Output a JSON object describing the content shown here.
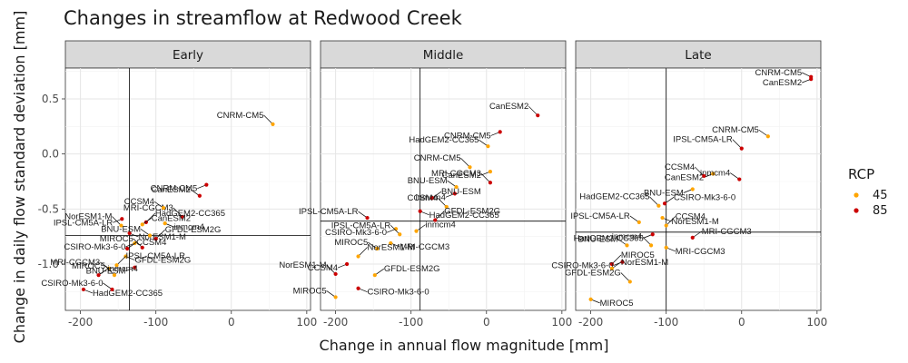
{
  "colors": {
    "rcp45": "#ffa500",
    "rcp85": "#cc0000"
  },
  "chart_data": {
    "type": "scatter",
    "title": "Changes in streamflow at Redwood Creek",
    "xlabel": "Change in annual flow magnitude [mm]",
    "ylabel": "Change in daily flow standard deviation [mm]",
    "xlim": [
      -220,
      105
    ],
    "ylim": [
      -1.42,
      0.78
    ],
    "xticks": [
      -200,
      -100,
      0,
      100
    ],
    "xtick_labels": [
      "-200",
      "-100",
      "0",
      "100"
    ],
    "yticks": [
      -1.0,
      -0.5,
      0.0,
      0.5
    ],
    "ytick_labels": [
      "-1.0",
      "-0.5",
      "0.0",
      "0.5"
    ],
    "grid": true,
    "legend": {
      "title": "RCP",
      "placement": "right",
      "entries": [
        "45",
        "85"
      ]
    },
    "facets": [
      {
        "name": "Early",
        "vline": -135,
        "hline": -0.74,
        "points": [
          {
            "label": "CNRM-CM5",
            "x": 55,
            "y": 0.27,
            "rcp": "45"
          },
          {
            "label": "CNRM-CM5",
            "x": -33,
            "y": -0.28,
            "rcp": "85"
          },
          {
            "label": "CanESM2",
            "x": -42,
            "y": -0.38,
            "rcp": "85"
          },
          {
            "label": "MRI-CGCM3",
            "x": -65,
            "y": -0.57,
            "rcp": "85"
          },
          {
            "label": "inmcm4",
            "x": -88,
            "y": -0.63,
            "rcp": "45"
          },
          {
            "label": "CCSM4",
            "x": -90,
            "y": -0.49,
            "rcp": "45"
          },
          {
            "label": "HadGEM2-CC365",
            "x": -113,
            "y": -0.62,
            "rcp": "85"
          },
          {
            "label": "IPSL-CM5A-LR",
            "x": -145,
            "y": -0.59,
            "rcp": "85"
          },
          {
            "label": "CanESM2",
            "x": -118,
            "y": -0.64,
            "rcp": "45"
          },
          {
            "label": "NorESM1-M",
            "x": -146,
            "y": -0.65,
            "rcp": "45"
          },
          {
            "label": "NorESM1-M",
            "x": -135,
            "y": -0.72,
            "rcp": "85"
          },
          {
            "label": "BNU-ESM",
            "x": -108,
            "y": -0.74,
            "rcp": "45"
          },
          {
            "label": "GFDL-ESM2G",
            "x": -100,
            "y": -0.77,
            "rcp": "85"
          },
          {
            "label": "CSIRO-Mk3-6-0",
            "x": -128,
            "y": -0.81,
            "rcp": "45"
          },
          {
            "label": "CCSM4",
            "x": -138,
            "y": -0.86,
            "rcp": "85"
          },
          {
            "label": "MIROC5",
            "x": -118,
            "y": -0.85,
            "rcp": "85"
          },
          {
            "label": "GFDL-ESM2G",
            "x": -140,
            "y": -0.93,
            "rcp": "45"
          },
          {
            "label": "MRI-CGCM3",
            "x": -162,
            "y": -1.04,
            "rcp": "45"
          },
          {
            "label": "IPSL-CM5A-LR",
            "x": -152,
            "y": -1.01,
            "rcp": "45"
          },
          {
            "label": "BNU-ESM",
            "x": -128,
            "y": -1.03,
            "rcp": "85"
          },
          {
            "label": "inmcm4",
            "x": -176,
            "y": -1.1,
            "rcp": "85"
          },
          {
            "label": "MIROC5",
            "x": -155,
            "y": -1.1,
            "rcp": "45"
          },
          {
            "label": "HadGEM2-CC365",
            "x": -196,
            "y": -1.23,
            "rcp": "85"
          },
          {
            "label": "CSIRO-Mk3-6-0",
            "x": -158,
            "y": -1.23,
            "rcp": "85"
          }
        ]
      },
      {
        "name": "Middle",
        "vline": -88,
        "hline": -0.61,
        "points": [
          {
            "label": "CanESM2",
            "x": 68,
            "y": 0.35,
            "rcp": "85"
          },
          {
            "label": "CNRM-CM5",
            "x": 18,
            "y": 0.2,
            "rcp": "85"
          },
          {
            "label": "HadGEM2-CC365",
            "x": 2,
            "y": 0.07,
            "rcp": "45"
          },
          {
            "label": "CNRM-CM5",
            "x": -22,
            "y": -0.12,
            "rcp": "45"
          },
          {
            "label": "CanESM2",
            "x": 5,
            "y": -0.16,
            "rcp": "45"
          },
          {
            "label": "BNU-ESM",
            "x": -40,
            "y": -0.3,
            "rcp": "45"
          },
          {
            "label": "MRI-CGCM3",
            "x": 5,
            "y": -0.26,
            "rcp": "85"
          },
          {
            "label": "inmcm4",
            "x": -42,
            "y": -0.36,
            "rcp": "85"
          },
          {
            "label": "BNU-ESM",
            "x": -72,
            "y": -0.4,
            "rcp": "85"
          },
          {
            "label": "CCSM4",
            "x": -53,
            "y": -0.48,
            "rcp": "45"
          },
          {
            "label": "HadGEM2-CC365",
            "x": -88,
            "y": -0.52,
            "rcp": "85"
          },
          {
            "label": "IPSL-CM5A-LR",
            "x": -158,
            "y": -0.58,
            "rcp": "85"
          },
          {
            "label": "GFDL-ESM2G",
            "x": -68,
            "y": -0.6,
            "rcp": "85"
          },
          {
            "label": "CSIRO-Mk3-6-0",
            "x": -120,
            "y": -0.68,
            "rcp": "45"
          },
          {
            "label": "inmcm4",
            "x": -93,
            "y": -0.7,
            "rcp": "45"
          },
          {
            "label": "IPSL-CM5A-LR",
            "x": -115,
            "y": -0.73,
            "rcp": "45"
          },
          {
            "label": "MRI-CGCM3",
            "x": -127,
            "y": -0.81,
            "rcp": "45"
          },
          {
            "label": "MIROC5",
            "x": -145,
            "y": -0.86,
            "rcp": "45"
          },
          {
            "label": "NorESM1-M",
            "x": -170,
            "y": -0.93,
            "rcp": "45"
          },
          {
            "label": "CCSM4",
            "x": -185,
            "y": -1.0,
            "rcp": "85"
          },
          {
            "label": "GFDL-ESM2G",
            "x": -148,
            "y": -1.1,
            "rcp": "45"
          },
          {
            "label": "NorESM1-M",
            "x": -200,
            "y": -1.09,
            "rcp": "85"
          },
          {
            "label": "CSIRO-Mk3-6-0",
            "x": -170,
            "y": -1.22,
            "rcp": "85"
          },
          {
            "label": "MIROC5",
            "x": -200,
            "y": -1.3,
            "rcp": "45"
          }
        ]
      },
      {
        "name": "Late",
        "vline": -100,
        "hline": -0.71,
        "points": [
          {
            "label": "CNRM-CM5",
            "x": 92,
            "y": 0.7,
            "rcp": "85"
          },
          {
            "label": "CanESM2",
            "x": 92,
            "y": 0.68,
            "rcp": "85"
          },
          {
            "label": "CNRM-CM5",
            "x": 35,
            "y": 0.16,
            "rcp": "45"
          },
          {
            "label": "IPSL-CM5A-LR",
            "x": 0,
            "y": 0.05,
            "rcp": "85"
          },
          {
            "label": "CanESM2",
            "x": -38,
            "y": -0.18,
            "rcp": "45"
          },
          {
            "label": "inmcm4",
            "x": -3,
            "y": -0.23,
            "rcp": "85"
          },
          {
            "label": "CCSM4",
            "x": -50,
            "y": -0.2,
            "rcp": "85"
          },
          {
            "label": "BNU-ESM",
            "x": -65,
            "y": -0.32,
            "rcp": "45"
          },
          {
            "label": "CSIRO-Mk3-6-0",
            "x": -102,
            "y": -0.45,
            "rcp": "85"
          },
          {
            "label": "HadGEM2-CC365",
            "x": -110,
            "y": -0.47,
            "rcp": "45"
          },
          {
            "label": "NorESM1-M",
            "x": -105,
            "y": -0.58,
            "rcp": "45"
          },
          {
            "label": "IPSL-CM5A-LR",
            "x": -136,
            "y": -0.62,
            "rcp": "45"
          },
          {
            "label": "CCSM4",
            "x": -100,
            "y": -0.65,
            "rcp": "45"
          },
          {
            "label": "HadGEM2-CC365",
            "x": -118,
            "y": -0.73,
            "rcp": "85"
          },
          {
            "label": "MRI-CGCM3",
            "x": -65,
            "y": -0.76,
            "rcp": "85"
          },
          {
            "label": "inmcm4",
            "x": -120,
            "y": -0.83,
            "rcp": "45"
          },
          {
            "label": "MRI-CGCM3",
            "x": -100,
            "y": -0.85,
            "rcp": "45"
          },
          {
            "label": "BNU-ESM",
            "x": -152,
            "y": -0.83,
            "rcp": "45"
          },
          {
            "label": "MIROC5",
            "x": -172,
            "y": -1.0,
            "rcp": "85"
          },
          {
            "label": "CSIRO-Mk3-6-0",
            "x": -158,
            "y": -0.98,
            "rcp": "85"
          },
          {
            "label": "NorESM1-M",
            "x": -172,
            "y": -1.04,
            "rcp": "45"
          },
          {
            "label": "GFDL-ESM2G",
            "x": -148,
            "y": -1.16,
            "rcp": "45"
          },
          {
            "label": "MIROC5",
            "x": -200,
            "y": -1.32,
            "rcp": "45"
          }
        ]
      }
    ]
  }
}
